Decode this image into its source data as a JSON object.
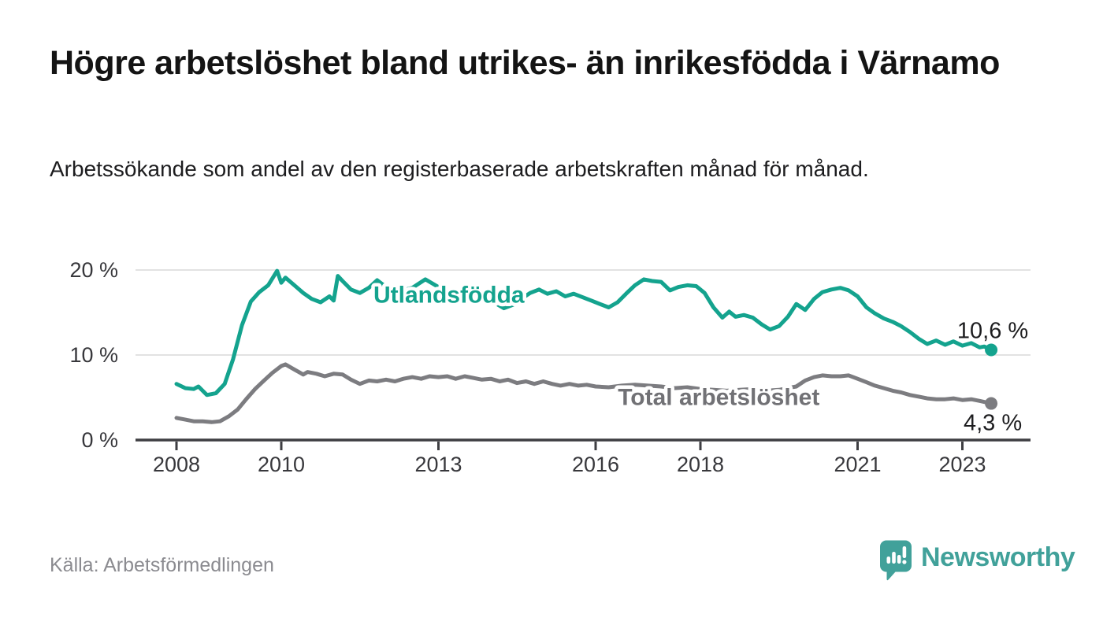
{
  "header": {
    "title": "Högre arbetslöshet bland utrikes- än inrikesfödda i Värnamo",
    "subtitle": "Arbetssökande som andel av den registerbaserade arbetskraften månad för månad."
  },
  "footer": {
    "source": "Källa: Arbetsförmedlingen",
    "brand": {
      "name": "Newsworthy",
      "color": "#41a19a",
      "icon": "bar-chart-speech-bubble-icon"
    }
  },
  "chart_data": {
    "type": "line",
    "unit": "%",
    "grid": true,
    "gridline_color": "#d9d9d9",
    "axis_color": "#3e3e42",
    "tick_label_color": "#38383c",
    "value_label_color": "#1d1d1f",
    "x_axis": {
      "range": [
        2007.2,
        2024.3
      ],
      "ticks": [
        {
          "value": 2008,
          "label": "2008"
        },
        {
          "value": 2010,
          "label": "2010"
        },
        {
          "value": 2013,
          "label": "2013"
        },
        {
          "value": 2016,
          "label": "2016"
        },
        {
          "value": 2018,
          "label": "2018"
        },
        {
          "value": 2021,
          "label": "2021"
        },
        {
          "value": 2023,
          "label": "2023"
        }
      ]
    },
    "y_axis": {
      "range": [
        0,
        21
      ],
      "ticks": [
        {
          "value": 0,
          "label": "0 %"
        },
        {
          "value": 10,
          "label": "10 %"
        },
        {
          "value": 20,
          "label": "20 %"
        }
      ]
    },
    "series": [
      {
        "name": "Utlandsfödda",
        "color": "#14a38e",
        "end_label": "10,6 %",
        "end_value": 10.6,
        "end_label_position": "above",
        "label_anchor": {
          "x": 2013.2,
          "y": 17.1
        },
        "points": [
          [
            2008.0,
            6.6
          ],
          [
            2008.17,
            6.1
          ],
          [
            2008.33,
            6.0
          ],
          [
            2008.42,
            6.3
          ],
          [
            2008.58,
            5.3
          ],
          [
            2008.75,
            5.5
          ],
          [
            2008.92,
            6.6
          ],
          [
            2009.08,
            9.5
          ],
          [
            2009.25,
            13.5
          ],
          [
            2009.42,
            16.3
          ],
          [
            2009.58,
            17.4
          ],
          [
            2009.75,
            18.2
          ],
          [
            2009.92,
            19.9
          ],
          [
            2010.0,
            18.5
          ],
          [
            2010.08,
            19.1
          ],
          [
            2010.25,
            18.2
          ],
          [
            2010.42,
            17.3
          ],
          [
            2010.58,
            16.6
          ],
          [
            2010.75,
            16.2
          ],
          [
            2010.92,
            16.9
          ],
          [
            2011.0,
            16.4
          ],
          [
            2011.08,
            19.3
          ],
          [
            2011.17,
            18.7
          ],
          [
            2011.33,
            17.7
          ],
          [
            2011.5,
            17.3
          ],
          [
            2011.67,
            17.9
          ],
          [
            2011.83,
            18.8
          ],
          [
            2012.0,
            18.0
          ],
          [
            2012.25,
            17.5
          ],
          [
            2012.5,
            17.9
          ],
          [
            2012.75,
            18.9
          ],
          [
            2013.0,
            18.0
          ],
          [
            2013.25,
            17.4
          ],
          [
            2013.5,
            17.0
          ],
          [
            2013.75,
            16.8
          ],
          [
            2014.0,
            16.4
          ],
          [
            2014.25,
            15.5
          ],
          [
            2014.42,
            15.9
          ],
          [
            2014.58,
            16.6
          ],
          [
            2014.75,
            17.3
          ],
          [
            2014.92,
            17.7
          ],
          [
            2015.08,
            17.2
          ],
          [
            2015.25,
            17.5
          ],
          [
            2015.42,
            16.9
          ],
          [
            2015.58,
            17.2
          ],
          [
            2015.75,
            16.8
          ],
          [
            2015.92,
            16.4
          ],
          [
            2016.08,
            16.0
          ],
          [
            2016.25,
            15.6
          ],
          [
            2016.42,
            16.2
          ],
          [
            2016.58,
            17.2
          ],
          [
            2016.75,
            18.2
          ],
          [
            2016.92,
            18.9
          ],
          [
            2017.08,
            18.7
          ],
          [
            2017.25,
            18.6
          ],
          [
            2017.42,
            17.6
          ],
          [
            2017.58,
            18.0
          ],
          [
            2017.75,
            18.2
          ],
          [
            2017.92,
            18.1
          ],
          [
            2018.08,
            17.3
          ],
          [
            2018.25,
            15.6
          ],
          [
            2018.42,
            14.4
          ],
          [
            2018.55,
            15.1
          ],
          [
            2018.67,
            14.5
          ],
          [
            2018.83,
            14.7
          ],
          [
            2019.0,
            14.4
          ],
          [
            2019.17,
            13.6
          ],
          [
            2019.33,
            13.0
          ],
          [
            2019.5,
            13.4
          ],
          [
            2019.67,
            14.5
          ],
          [
            2019.83,
            16.0
          ],
          [
            2020.0,
            15.3
          ],
          [
            2020.17,
            16.6
          ],
          [
            2020.33,
            17.4
          ],
          [
            2020.5,
            17.7
          ],
          [
            2020.67,
            17.9
          ],
          [
            2020.83,
            17.6
          ],
          [
            2021.0,
            16.9
          ],
          [
            2021.17,
            15.6
          ],
          [
            2021.33,
            14.9
          ],
          [
            2021.5,
            14.3
          ],
          [
            2021.67,
            13.9
          ],
          [
            2021.83,
            13.4
          ],
          [
            2022.0,
            12.7
          ],
          [
            2022.17,
            11.9
          ],
          [
            2022.33,
            11.3
          ],
          [
            2022.5,
            11.7
          ],
          [
            2022.67,
            11.2
          ],
          [
            2022.83,
            11.6
          ],
          [
            2023.0,
            11.1
          ],
          [
            2023.17,
            11.4
          ],
          [
            2023.33,
            10.9
          ],
          [
            2023.42,
            11.0
          ],
          [
            2023.55,
            10.6
          ]
        ]
      },
      {
        "name": "Total arbetslöshet",
        "color": "#7c7c80",
        "label_color": "#717175",
        "end_label": "4,3 %",
        "end_value": 4.3,
        "end_label_position": "below",
        "label_anchor": {
          "x": 2018.35,
          "y": 5.05
        },
        "points": [
          [
            2008.0,
            2.6
          ],
          [
            2008.17,
            2.4
          ],
          [
            2008.33,
            2.2
          ],
          [
            2008.5,
            2.2
          ],
          [
            2008.67,
            2.1
          ],
          [
            2008.83,
            2.2
          ],
          [
            2009.0,
            2.8
          ],
          [
            2009.17,
            3.6
          ],
          [
            2009.33,
            4.8
          ],
          [
            2009.5,
            6.0
          ],
          [
            2009.67,
            7.0
          ],
          [
            2009.83,
            7.9
          ],
          [
            2010.0,
            8.7
          ],
          [
            2010.08,
            8.9
          ],
          [
            2010.25,
            8.3
          ],
          [
            2010.42,
            7.7
          ],
          [
            2010.5,
            8.0
          ],
          [
            2010.67,
            7.8
          ],
          [
            2010.83,
            7.5
          ],
          [
            2011.0,
            7.8
          ],
          [
            2011.17,
            7.7
          ],
          [
            2011.33,
            7.1
          ],
          [
            2011.5,
            6.6
          ],
          [
            2011.67,
            7.0
          ],
          [
            2011.83,
            6.9
          ],
          [
            2012.0,
            7.1
          ],
          [
            2012.17,
            6.9
          ],
          [
            2012.33,
            7.2
          ],
          [
            2012.5,
            7.4
          ],
          [
            2012.67,
            7.2
          ],
          [
            2012.83,
            7.5
          ],
          [
            2013.0,
            7.4
          ],
          [
            2013.17,
            7.5
          ],
          [
            2013.33,
            7.2
          ],
          [
            2013.5,
            7.5
          ],
          [
            2013.67,
            7.3
          ],
          [
            2013.83,
            7.1
          ],
          [
            2014.0,
            7.2
          ],
          [
            2014.17,
            6.9
          ],
          [
            2014.33,
            7.1
          ],
          [
            2014.5,
            6.7
          ],
          [
            2014.67,
            6.9
          ],
          [
            2014.83,
            6.6
          ],
          [
            2015.0,
            6.9
          ],
          [
            2015.17,
            6.6
          ],
          [
            2015.33,
            6.4
          ],
          [
            2015.5,
            6.6
          ],
          [
            2015.67,
            6.4
          ],
          [
            2015.83,
            6.5
          ],
          [
            2016.0,
            6.3
          ],
          [
            2016.25,
            6.2
          ],
          [
            2016.5,
            6.4
          ],
          [
            2016.75,
            6.5
          ],
          [
            2017.0,
            6.4
          ],
          [
            2017.25,
            6.3
          ],
          [
            2017.5,
            6.1
          ],
          [
            2017.75,
            6.2
          ],
          [
            2018.0,
            6.0
          ],
          [
            2018.25,
            5.9
          ],
          [
            2018.5,
            5.8
          ],
          [
            2018.75,
            5.9
          ],
          [
            2019.0,
            6.0
          ],
          [
            2019.25,
            5.8
          ],
          [
            2019.5,
            5.9
          ],
          [
            2019.67,
            6.1
          ],
          [
            2019.83,
            6.3
          ],
          [
            2020.0,
            7.0
          ],
          [
            2020.17,
            7.4
          ],
          [
            2020.33,
            7.6
          ],
          [
            2020.5,
            7.5
          ],
          [
            2020.67,
            7.5
          ],
          [
            2020.83,
            7.6
          ],
          [
            2021.0,
            7.2
          ],
          [
            2021.17,
            6.8
          ],
          [
            2021.33,
            6.4
          ],
          [
            2021.5,
            6.1
          ],
          [
            2021.67,
            5.8
          ],
          [
            2021.83,
            5.6
          ],
          [
            2022.0,
            5.3
          ],
          [
            2022.17,
            5.1
          ],
          [
            2022.33,
            4.9
          ],
          [
            2022.5,
            4.8
          ],
          [
            2022.67,
            4.8
          ],
          [
            2022.83,
            4.9
          ],
          [
            2023.0,
            4.7
          ],
          [
            2023.17,
            4.8
          ],
          [
            2023.33,
            4.6
          ],
          [
            2023.55,
            4.3
          ]
        ]
      }
    ]
  }
}
